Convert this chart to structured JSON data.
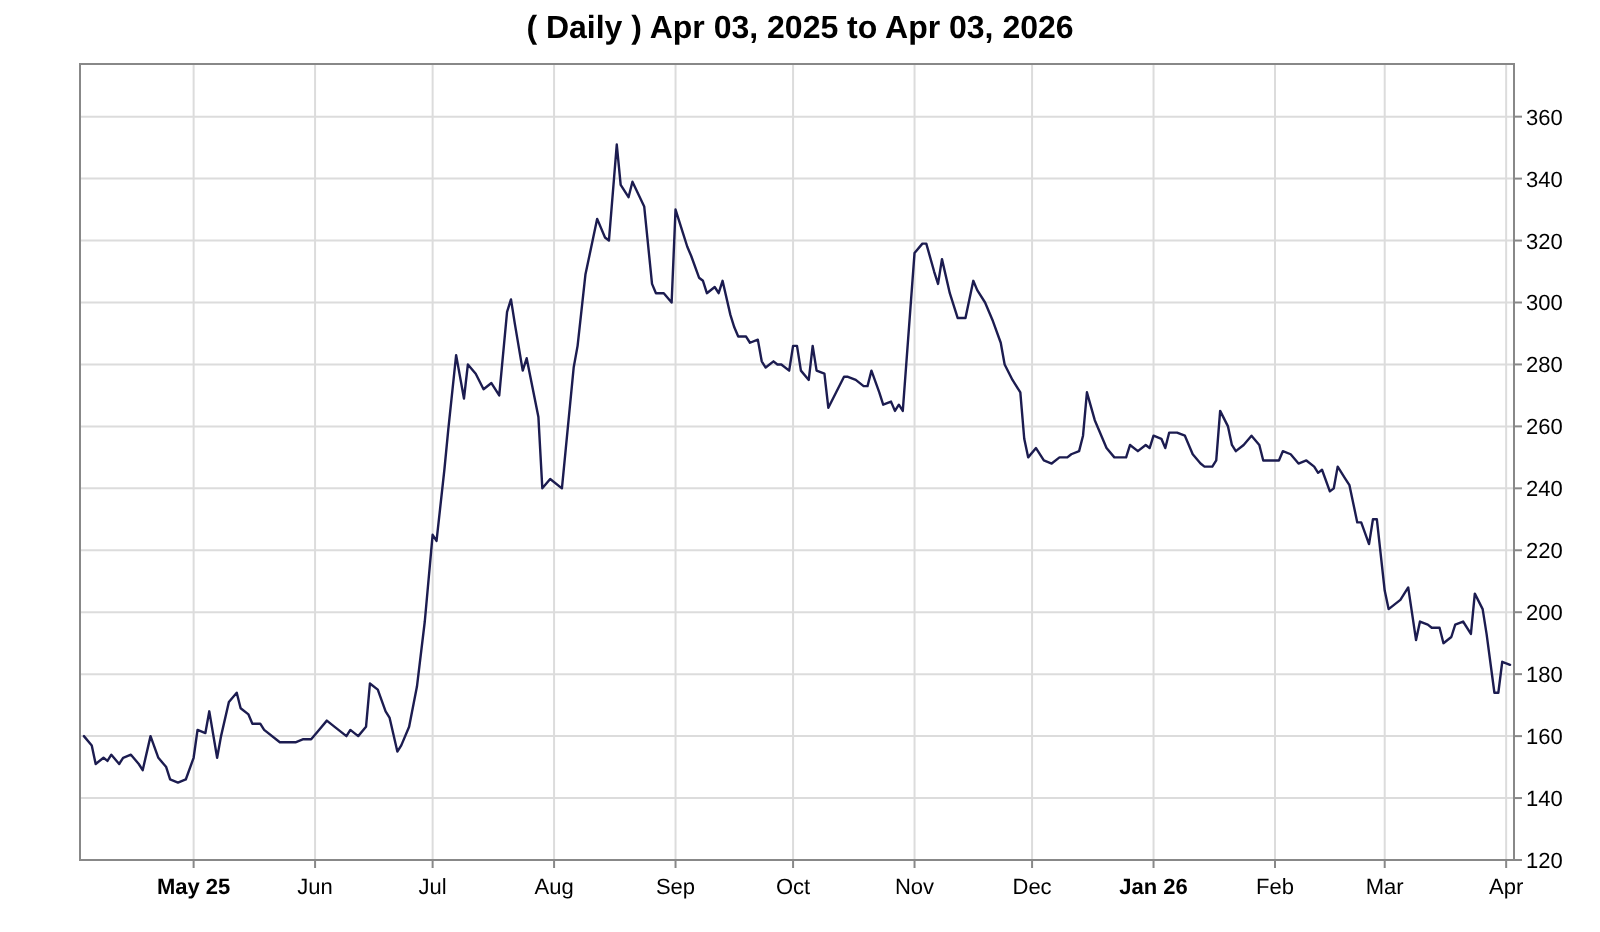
{
  "chart_data": {
    "type": "line",
    "title": "( Daily ) Apr 03, 2025 to Apr 03, 2026",
    "x": [
      "2025-04-03",
      "2025-04-05",
      "2025-04-06",
      "2025-04-08",
      "2025-04-09",
      "2025-04-10",
      "2025-04-12",
      "2025-04-13",
      "2025-04-15",
      "2025-04-17",
      "2025-04-18",
      "2025-04-20",
      "2025-04-22",
      "2025-04-24",
      "2025-04-25",
      "2025-04-27",
      "2025-04-29",
      "2025-05-01",
      "2025-05-02",
      "2025-05-04",
      "2025-05-05",
      "2025-05-07",
      "2025-05-08",
      "2025-05-10",
      "2025-05-12",
      "2025-05-13",
      "2025-05-15",
      "2025-05-16",
      "2025-05-18",
      "2025-05-19",
      "2025-05-23",
      "2025-05-27",
      "2025-05-29",
      "2025-05-31",
      "2025-06-02",
      "2025-06-04",
      "2025-06-06",
      "2025-06-09",
      "2025-06-10",
      "2025-06-12",
      "2025-06-14",
      "2025-06-15",
      "2025-06-17",
      "2025-06-19",
      "2025-06-20",
      "2025-06-22",
      "2025-06-23",
      "2025-06-25",
      "2025-06-27",
      "2025-06-29",
      "2025-07-01",
      "2025-07-02",
      "2025-07-04",
      "2025-07-05",
      "2025-07-07",
      "2025-07-09",
      "2025-07-10",
      "2025-07-12",
      "2025-07-14",
      "2025-07-16",
      "2025-07-18",
      "2025-07-20",
      "2025-07-21",
      "2025-07-22",
      "2025-07-24",
      "2025-07-25",
      "2025-07-28",
      "2025-07-29",
      "2025-07-31",
      "2025-08-03",
      "2025-08-04",
      "2025-08-06",
      "2025-08-07",
      "2025-08-09",
      "2025-08-10",
      "2025-08-12",
      "2025-08-14",
      "2025-08-15",
      "2025-08-17",
      "2025-08-18",
      "2025-08-20",
      "2025-08-21",
      "2025-08-24",
      "2025-08-26",
      "2025-08-27",
      "2025-08-29",
      "2025-08-31",
      "2025-09-01",
      "2025-09-03",
      "2025-09-04",
      "2025-09-05",
      "2025-09-07",
      "2025-09-08",
      "2025-09-09",
      "2025-09-11",
      "2025-09-12",
      "2025-09-13",
      "2025-09-15",
      "2025-09-16",
      "2025-09-17",
      "2025-09-19",
      "2025-09-20",
      "2025-09-22",
      "2025-09-23",
      "2025-09-24",
      "2025-09-26",
      "2025-09-27",
      "2025-09-28",
      "2025-09-30",
      "2025-10-01",
      "2025-10-02",
      "2025-10-03",
      "2025-10-05",
      "2025-10-06",
      "2025-10-07",
      "2025-10-09",
      "2025-10-10",
      "2025-10-12",
      "2025-10-14",
      "2025-10-15",
      "2025-10-17",
      "2025-10-19",
      "2025-10-20",
      "2025-10-21",
      "2025-10-23",
      "2025-10-24",
      "2025-10-26",
      "2025-10-27",
      "2025-10-28",
      "2025-10-29",
      "2025-11-01",
      "2025-11-03",
      "2025-11-04",
      "2025-11-06",
      "2025-11-07",
      "2025-11-08",
      "2025-11-10",
      "2025-11-12",
      "2025-11-14",
      "2025-11-16",
      "2025-11-17",
      "2025-11-19",
      "2025-11-21",
      "2025-11-23",
      "2025-11-24",
      "2025-11-26",
      "2025-11-28",
      "2025-11-29",
      "2025-11-30",
      "2025-12-02",
      "2025-12-04",
      "2025-12-06",
      "2025-12-08",
      "2025-12-10",
      "2025-12-11",
      "2025-12-13",
      "2025-12-14",
      "2025-12-15",
      "2025-12-17",
      "2025-12-18",
      "2025-12-20",
      "2025-12-22",
      "2025-12-25",
      "2025-12-26",
      "2025-12-28",
      "2025-12-30",
      "2025-12-31",
      "2026-01-01",
      "2026-01-03",
      "2026-01-04",
      "2026-01-05",
      "2026-01-07",
      "2026-01-09",
      "2026-01-11",
      "2026-01-13",
      "2026-01-14",
      "2026-01-16",
      "2026-01-17",
      "2026-01-18",
      "2026-01-20",
      "2026-01-21",
      "2026-01-22",
      "2026-01-24",
      "2026-01-26",
      "2026-01-28",
      "2026-01-29",
      "2026-01-31",
      "2026-02-02",
      "2026-02-03",
      "2026-02-05",
      "2026-02-07",
      "2026-02-09",
      "2026-02-11",
      "2026-02-12",
      "2026-02-13",
      "2026-02-15",
      "2026-02-16",
      "2026-02-17",
      "2026-02-19",
      "2026-02-20",
      "2026-02-22",
      "2026-02-23",
      "2026-02-25",
      "2026-02-26",
      "2026-02-27",
      "2026-03-01",
      "2026-03-02",
      "2026-03-05",
      "2026-03-07",
      "2026-03-09",
      "2026-03-10",
      "2026-03-12",
      "2026-03-13",
      "2026-03-15",
      "2026-03-16",
      "2026-03-18",
      "2026-03-19",
      "2026-03-21",
      "2026-03-23",
      "2026-03-24",
      "2026-03-26",
      "2026-03-27",
      "2026-03-29",
      "2026-03-30",
      "2026-03-31",
      "2026-04-02"
    ],
    "series": [
      {
        "color": "#1c1c50",
        "values": [
          160,
          157,
          151,
          153,
          152,
          154,
          151,
          153,
          154,
          151,
          149,
          160,
          153,
          150,
          146,
          145,
          146,
          153,
          162,
          161,
          168,
          153,
          160,
          171,
          174,
          169,
          167,
          164,
          164,
          162,
          158,
          158,
          159,
          159,
          162,
          165,
          163,
          160,
          162,
          160,
          163,
          177,
          175,
          168,
          166,
          155,
          157,
          163,
          176,
          197,
          225,
          223,
          246,
          259,
          283,
          269,
          280,
          277,
          272,
          274,
          270,
          297,
          301,
          293,
          278,
          282,
          263,
          240,
          243,
          240,
          253,
          279,
          286,
          309,
          315,
          327,
          321,
          320,
          351,
          338,
          334,
          339,
          331,
          306,
          303,
          303,
          300,
          330,
          322,
          318,
          315,
          308,
          307,
          303,
          305,
          303,
          307,
          296,
          292,
          289,
          289,
          287,
          288,
          281,
          279,
          281,
          280,
          280,
          278,
          286,
          286,
          278,
          275,
          286,
          278,
          277,
          266,
          271,
          276,
          276,
          275,
          273,
          273,
          278,
          271,
          267,
          268,
          265,
          267,
          265,
          316,
          319,
          319,
          310,
          306,
          314,
          303,
          295,
          295,
          307,
          304,
          300,
          294,
          287,
          280,
          275,
          271,
          256,
          250,
          253,
          249,
          248,
          250,
          250,
          251,
          252,
          257,
          271,
          262,
          259,
          253,
          250,
          250,
          254,
          252,
          254,
          253,
          257,
          256,
          253,
          258,
          258,
          257,
          251,
          248,
          247,
          247,
          249,
          265,
          260,
          254,
          252,
          254,
          257,
          254,
          249,
          249,
          249,
          252,
          251,
          248,
          249,
          247,
          245,
          246,
          239,
          240,
          247,
          243,
          241,
          229,
          229,
          222,
          230,
          230,
          207,
          201,
          204,
          208,
          191,
          197,
          196,
          195,
          195,
          190,
          192,
          196,
          197,
          193,
          206,
          201,
          193,
          174,
          174,
          184,
          183
        ]
      }
    ],
    "xlim": [
      "2025-04-02",
      "2026-04-03"
    ],
    "xticks": [
      {
        "value": "2025-05-01",
        "label": "May 25"
      },
      {
        "value": "2025-06-01",
        "label": "Jun"
      },
      {
        "value": "2025-07-01",
        "label": "Jul"
      },
      {
        "value": "2025-08-01",
        "label": "Aug"
      },
      {
        "value": "2025-09-01",
        "label": "Sep"
      },
      {
        "value": "2025-10-01",
        "label": "Oct"
      },
      {
        "value": "2025-11-01",
        "label": "Nov"
      },
      {
        "value": "2025-12-01",
        "label": "Dec"
      },
      {
        "value": "2026-01-01",
        "label": "Jan 26"
      },
      {
        "value": "2026-02-01",
        "label": "Feb"
      },
      {
        "value": "2026-03-01",
        "label": "Mar"
      },
      {
        "value": "2026-04-01",
        "label": "Apr"
      }
    ],
    "ylim": [
      120,
      377
    ],
    "yticks": [
      120,
      140,
      160,
      180,
      200,
      220,
      240,
      260,
      280,
      300,
      320,
      340,
      360
    ],
    "grid": true,
    "marker": "none",
    "line_style": "solid"
  }
}
